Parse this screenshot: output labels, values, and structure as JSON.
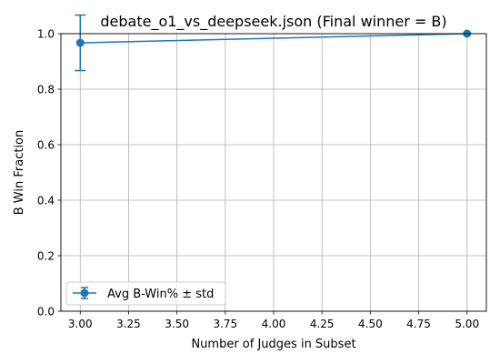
{
  "chart_data": {
    "type": "line",
    "title": "debate_o1_vs_deepseek.json (Final winner = B)",
    "xlabel": "Number of Judges in Subset",
    "ylabel": "B Win Fraction",
    "xlim": [
      2.9,
      5.1
    ],
    "ylim": [
      0.0,
      1.0
    ],
    "x_ticks": [
      3.0,
      3.25,
      3.5,
      3.75,
      4.0,
      4.25,
      4.5,
      4.75,
      5.0
    ],
    "x_tick_labels": [
      "3.00",
      "3.25",
      "3.50",
      "3.75",
      "4.00",
      "4.25",
      "4.50",
      "4.75",
      "5.00"
    ],
    "y_ticks": [
      0.0,
      0.2,
      0.4,
      0.6,
      0.8,
      1.0
    ],
    "y_tick_labels": [
      "0.0",
      "0.2",
      "0.4",
      "0.6",
      "0.8",
      "1.0"
    ],
    "grid": true,
    "legend_position": "lower-left",
    "series": [
      {
        "name": "Avg B-Win% ± std",
        "color": "#1f77b4",
        "marker": "circle",
        "x": [
          3,
          5
        ],
        "y": [
          0.967,
          1.0
        ],
        "yerr": [
          0.1,
          0.0
        ]
      }
    ]
  }
}
